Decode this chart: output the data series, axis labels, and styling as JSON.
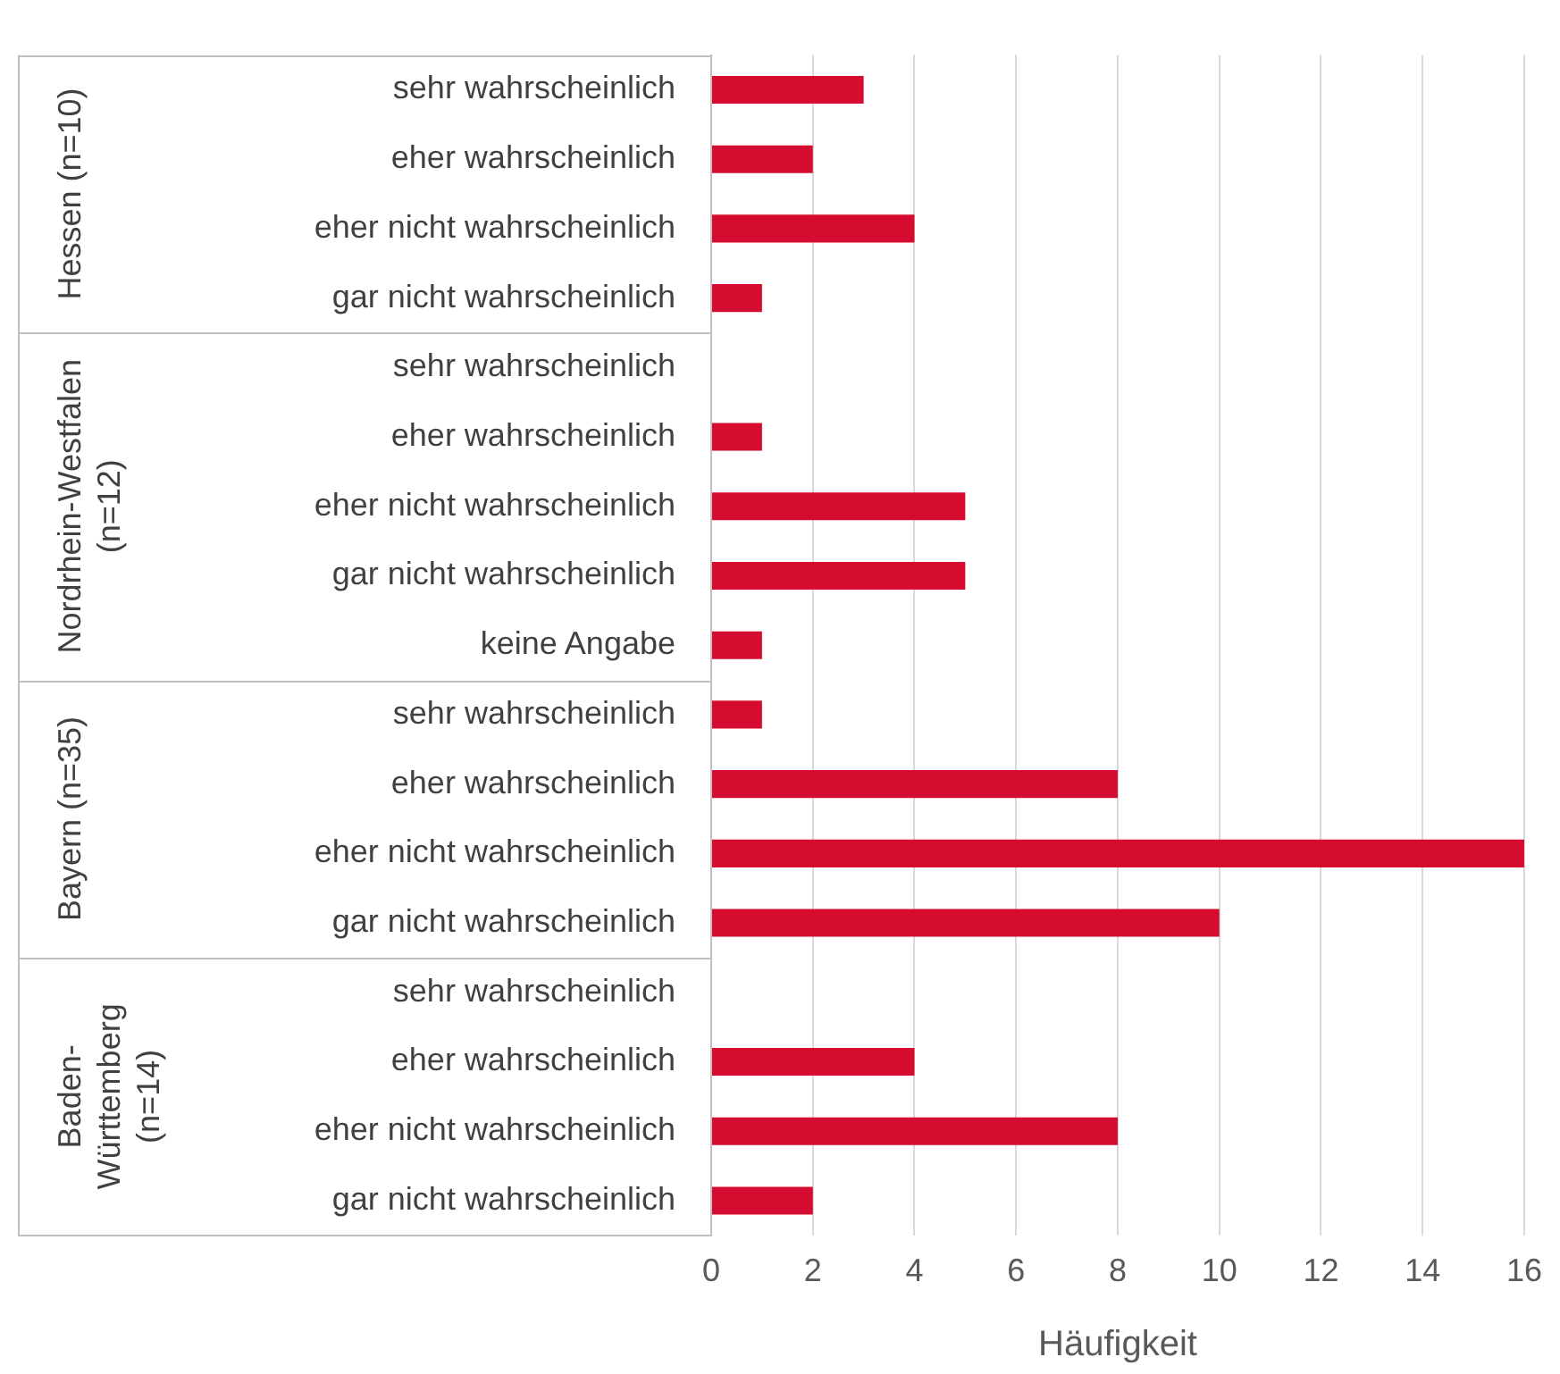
{
  "chart_data": {
    "type": "bar",
    "orientation": "horizontal",
    "xlabel": "Häufigkeit",
    "categories": [
      "sehr wahrscheinlich",
      "eher wahrscheinlich",
      "eher nicht wahrscheinlich",
      "gar nicht wahrscheinlich",
      "sehr wahrscheinlich",
      "eher wahrscheinlich",
      "eher nicht wahrscheinlich",
      "gar nicht wahrscheinlich",
      "keine Angabe",
      "sehr wahrscheinlich",
      "eher wahrscheinlich",
      "eher nicht wahrscheinlich",
      "gar nicht wahrscheinlich",
      "sehr wahrscheinlich",
      "eher wahrscheinlich",
      "eher nicht wahrscheinlich",
      "gar nicht wahrscheinlich"
    ],
    "values": [
      3,
      2,
      4,
      1,
      0,
      1,
      5,
      5,
      1,
      1,
      8,
      16,
      10,
      0,
      4,
      8,
      2
    ],
    "color": "#d50c2f",
    "xlim": [
      0,
      16
    ],
    "xticks": [
      0,
      2,
      4,
      6,
      8,
      10,
      12,
      14,
      16
    ],
    "grid": "x",
    "legend": false,
    "annotations": [
      "Hessen (n=10)",
      "Nordrhein-Westfalen (n=12)",
      "Bayern (n=35)",
      "Baden-Württemberg (n=14)"
    ]
  }
}
